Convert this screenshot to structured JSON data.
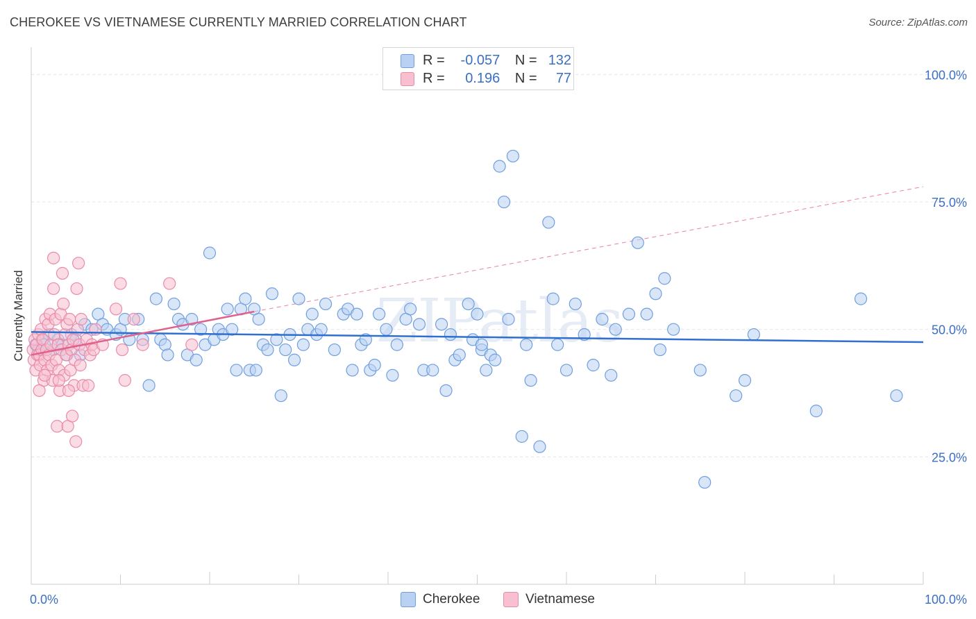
{
  "title": "CHEROKEE VS VIETNAMESE CURRENTLY MARRIED CORRELATION CHART",
  "source": "Source: ZipAtlas.com",
  "watermark": "ZIPatlas",
  "colors": {
    "cherokee_fill": "#b9d1f2",
    "cherokee_stroke": "#6f9ee0",
    "cherokee_line": "#2e6fcf",
    "vietnamese_fill": "#f8bfd0",
    "vietnamese_stroke": "#e98aa9",
    "vietnamese_line": "#e0628c",
    "tick_label": "#3a6fc4",
    "grid": "#e3e3e3"
  },
  "legend": {
    "rows": [
      {
        "r_label": "R =",
        "r_value": "-0.057",
        "n_label": "N =",
        "n_value": "132"
      },
      {
        "r_label": "R =",
        "r_value": "0.196",
        "n_label": "N =",
        "n_value": "77"
      }
    ]
  },
  "chart_data": {
    "type": "scatter",
    "title": "CHEROKEE VS VIETNAMESE CURRENTLY MARRIED CORRELATION CHART",
    "xlabel": "",
    "ylabel": "Currently Married",
    "xlim": [
      0,
      100
    ],
    "ylim": [
      0,
      104
    ],
    "x_tick_labels": [
      "0.0%",
      "100.0%"
    ],
    "y_ticks": [
      25,
      50,
      75,
      100
    ],
    "y_tick_labels": [
      "25.0%",
      "50.0%",
      "75.0%",
      "100.0%"
    ],
    "grid": true,
    "legend_placement": "top-center",
    "series": [
      {
        "name": "Cherokee",
        "r": -0.057,
        "n": 132,
        "trend": {
          "x": [
            0,
            100
          ],
          "y": [
            49.5,
            47.5
          ]
        },
        "points": [
          [
            0.5,
            47
          ],
          [
            0.8,
            46
          ],
          [
            1.2,
            48
          ],
          [
            1.5,
            47
          ],
          [
            2.0,
            49
          ],
          [
            2.5,
            46
          ],
          [
            3,
            48
          ],
          [
            3.5,
            47
          ],
          [
            4,
            45
          ],
          [
            4.5,
            49
          ],
          [
            5,
            48
          ],
          [
            5.5,
            45
          ],
          [
            6,
            51
          ],
          [
            6.8,
            50
          ],
          [
            7.5,
            53
          ],
          [
            8,
            51
          ],
          [
            8.5,
            50
          ],
          [
            9.5,
            49
          ],
          [
            10,
            50
          ],
          [
            10.5,
            52
          ],
          [
            11,
            48
          ],
          [
            12,
            52
          ],
          [
            12.5,
            48
          ],
          [
            13.2,
            39
          ],
          [
            14,
            56
          ],
          [
            14.5,
            48
          ],
          [
            15,
            47
          ],
          [
            15.3,
            45
          ],
          [
            16,
            55
          ],
          [
            16.5,
            52
          ],
          [
            17,
            51
          ],
          [
            17.5,
            45
          ],
          [
            18,
            52
          ],
          [
            18.5,
            44
          ],
          [
            19,
            50
          ],
          [
            19.5,
            47
          ],
          [
            20,
            65
          ],
          [
            20.5,
            48
          ],
          [
            21,
            50
          ],
          [
            21.5,
            49
          ],
          [
            22,
            54
          ],
          [
            22.5,
            50
          ],
          [
            23,
            42
          ],
          [
            23.5,
            54
          ],
          [
            24,
            56
          ],
          [
            24.5,
            42
          ],
          [
            25,
            54
          ],
          [
            25.5,
            52
          ],
          [
            26,
            47
          ],
          [
            26.5,
            46
          ],
          [
            27,
            57
          ],
          [
            27.5,
            48
          ],
          [
            28,
            37
          ],
          [
            28.5,
            46
          ],
          [
            29,
            49
          ],
          [
            29.5,
            44
          ],
          [
            30,
            56
          ],
          [
            30.5,
            47
          ],
          [
            31,
            50
          ],
          [
            31.5,
            53
          ],
          [
            32,
            49
          ],
          [
            32.5,
            50
          ],
          [
            33,
            55
          ],
          [
            34,
            46
          ],
          [
            35,
            53
          ],
          [
            35.5,
            54
          ],
          [
            36,
            42
          ],
          [
            36.5,
            53
          ],
          [
            37,
            47
          ],
          [
            37.5,
            48
          ],
          [
            38,
            42
          ],
          [
            38.5,
            43
          ],
          [
            39,
            53
          ],
          [
            39.8,
            50
          ],
          [
            40.5,
            41
          ],
          [
            41,
            47
          ],
          [
            42,
            52
          ],
          [
            42.5,
            54
          ],
          [
            43.5,
            51
          ],
          [
            44,
            42
          ],
          [
            45,
            42
          ],
          [
            46,
            51
          ],
          [
            46.5,
            38
          ],
          [
            47,
            49
          ],
          [
            47.5,
            44
          ],
          [
            48,
            45
          ],
          [
            49,
            55
          ],
          [
            49.5,
            48
          ],
          [
            50,
            53
          ],
          [
            50.5,
            46
          ],
          [
            51.5,
            45
          ],
          [
            52,
            44
          ],
          [
            52.5,
            82
          ],
          [
            53,
            75
          ],
          [
            53.5,
            52
          ],
          [
            54,
            84
          ],
          [
            55,
            29
          ],
          [
            55.5,
            47
          ],
          [
            56,
            40
          ],
          [
            57,
            27
          ],
          [
            58,
            71
          ],
          [
            58.5,
            56
          ],
          [
            59,
            47
          ],
          [
            60,
            42
          ],
          [
            61,
            55
          ],
          [
            62,
            49
          ],
          [
            63,
            43
          ],
          [
            64,
            52
          ],
          [
            65,
            41
          ],
          [
            65.5,
            50
          ],
          [
            67,
            53
          ],
          [
            68,
            67
          ],
          [
            69,
            53
          ],
          [
            70,
            57
          ],
          [
            70.5,
            46
          ],
          [
            71,
            60
          ],
          [
            72,
            50
          ],
          [
            75,
            42
          ],
          [
            75.5,
            20
          ],
          [
            79,
            37
          ],
          [
            80,
            40
          ],
          [
            81,
            49
          ],
          [
            88,
            34
          ],
          [
            93,
            56
          ],
          [
            97,
            37
          ],
          [
            50.5,
            47
          ],
          [
            51,
            42
          ],
          [
            25.2,
            42
          ]
        ]
      },
      {
        "name": "Vietnamese",
        "r": 0.196,
        "n": 77,
        "trend": {
          "x": [
            0,
            25
          ],
          "y": [
            45,
            53.5
          ]
        },
        "trend_extension": {
          "x": [
            25,
            100
          ],
          "y": [
            53.5,
            78
          ]
        },
        "points": [
          [
            0.2,
            46
          ],
          [
            0.3,
            44
          ],
          [
            0.4,
            48
          ],
          [
            0.5,
            42
          ],
          [
            0.6,
            47
          ],
          [
            0.7,
            45
          ],
          [
            0.8,
            49
          ],
          [
            0.9,
            45
          ],
          [
            1.0,
            43
          ],
          [
            1.1,
            50
          ],
          [
            1.2,
            46
          ],
          [
            1.3,
            48
          ],
          [
            1.4,
            40
          ],
          [
            1.5,
            44
          ],
          [
            1.6,
            52
          ],
          [
            1.7,
            46
          ],
          [
            1.8,
            42
          ],
          [
            1.9,
            51
          ],
          [
            2.0,
            45
          ],
          [
            2.1,
            53
          ],
          [
            2.2,
            47
          ],
          [
            2.3,
            43
          ],
          [
            2.4,
            40
          ],
          [
            2.5,
            58
          ],
          [
            2.6,
            49
          ],
          [
            2.7,
            52
          ],
          [
            2.8,
            44
          ],
          [
            2.9,
            31
          ],
          [
            3.0,
            47
          ],
          [
            3.1,
            42
          ],
          [
            3.2,
            38
          ],
          [
            3.3,
            53
          ],
          [
            3.4,
            46
          ],
          [
            3.5,
            61
          ],
          [
            3.6,
            55
          ],
          [
            3.7,
            41
          ],
          [
            3.8,
            49
          ],
          [
            3.9,
            45
          ],
          [
            4.0,
            51
          ],
          [
            4.1,
            31
          ],
          [
            4.2,
            47
          ],
          [
            4.3,
            52
          ],
          [
            4.4,
            42
          ],
          [
            4.5,
            46
          ],
          [
            4.6,
            33
          ],
          [
            4.7,
            48
          ],
          [
            4.8,
            39
          ],
          [
            4.9,
            44
          ],
          [
            5.0,
            28
          ],
          [
            5.1,
            58
          ],
          [
            5.2,
            50
          ],
          [
            5.3,
            63
          ],
          [
            5.4,
            47
          ],
          [
            5.5,
            43
          ],
          [
            5.6,
            52
          ],
          [
            5.8,
            39
          ],
          [
            6.0,
            46
          ],
          [
            6.2,
            48
          ],
          [
            6.4,
            39
          ],
          [
            6.6,
            45
          ],
          [
            6.8,
            47
          ],
          [
            7.0,
            46
          ],
          [
            7.2,
            50
          ],
          [
            8.0,
            47
          ],
          [
            9.5,
            54
          ],
          [
            10.0,
            59
          ],
          [
            10.2,
            46
          ],
          [
            10.5,
            40
          ],
          [
            11.5,
            52
          ],
          [
            12.5,
            47
          ],
          [
            15.5,
            59
          ],
          [
            18,
            47
          ],
          [
            2.5,
            64
          ],
          [
            1.5,
            41
          ],
          [
            0.9,
            38
          ],
          [
            3.1,
            40
          ],
          [
            4.2,
            38
          ]
        ]
      }
    ]
  }
}
